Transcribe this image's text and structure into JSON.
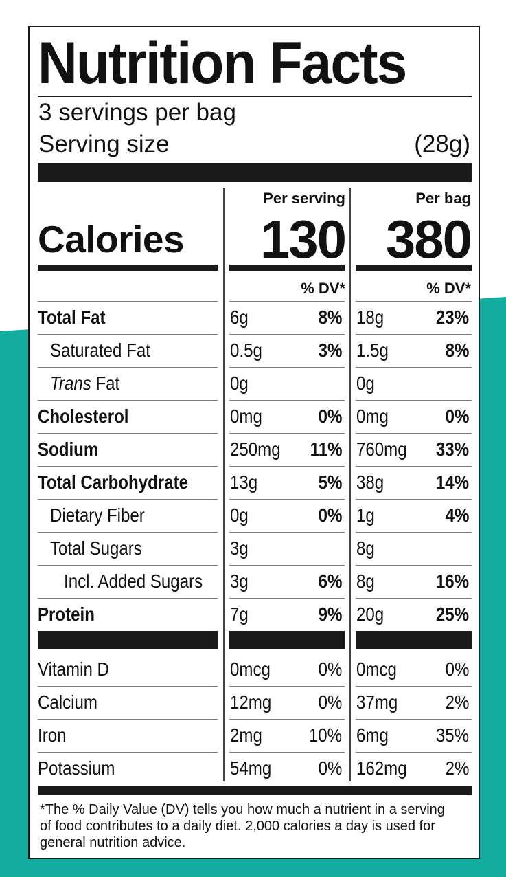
{
  "colors": {
    "teal": "#13aca0",
    "ink": "#1a1a1a"
  },
  "title": "Nutrition Facts",
  "servings_per_container": "3 servings per bag",
  "serving_size_label": "Serving size",
  "serving_size_value": "(28g)",
  "calories_label": "Calories",
  "columns": [
    {
      "header": "Per serving",
      "calories": "130",
      "dv_header": "% DV*"
    },
    {
      "header": "Per bag",
      "calories": "380",
      "dv_header": "% DV*"
    }
  ],
  "nutrients": [
    {
      "name": "Total Fat",
      "style": "bold",
      "serving_amount": "6g",
      "serving_dv": "8%",
      "bag_amount": "18g",
      "bag_dv": "23%"
    },
    {
      "name": "Saturated Fat",
      "style": "indent",
      "serving_amount": "0.5g",
      "serving_dv": "3%",
      "bag_amount": "1.5g",
      "bag_dv": "8%"
    },
    {
      "name_italic": "Trans",
      "name": " Fat",
      "style": "indent",
      "serving_amount": "0g",
      "serving_dv": "",
      "bag_amount": "0g",
      "bag_dv": ""
    },
    {
      "name": "Cholesterol",
      "style": "bold",
      "serving_amount": "0mg",
      "serving_dv": "0%",
      "bag_amount": "0mg",
      "bag_dv": "0%"
    },
    {
      "name": "Sodium",
      "style": "bold",
      "serving_amount": "250mg",
      "serving_dv": "11%",
      "bag_amount": "760mg",
      "bag_dv": "33%"
    },
    {
      "name": "Total Carbohydrate",
      "style": "bold",
      "serving_amount": "13g",
      "serving_dv": "5%",
      "bag_amount": "38g",
      "bag_dv": "14%"
    },
    {
      "name": "Dietary Fiber",
      "style": "indent",
      "serving_amount": "0g",
      "serving_dv": "0%",
      "bag_amount": "1g",
      "bag_dv": "4%"
    },
    {
      "name": "Total Sugars",
      "style": "indent",
      "serving_amount": "3g",
      "serving_dv": "",
      "bag_amount": "8g",
      "bag_dv": ""
    },
    {
      "name": "Incl. Added Sugars",
      "style": "indent2",
      "serving_amount": "3g",
      "serving_dv": "6%",
      "bag_amount": "8g",
      "bag_dv": "16%"
    },
    {
      "name": "Protein",
      "style": "bold",
      "serving_amount": "7g",
      "serving_dv": "9%",
      "bag_amount": "20g",
      "bag_dv": "25%"
    }
  ],
  "vitamins": [
    {
      "name": "Vitamin D",
      "serving_amount": "0mcg",
      "serving_dv": "0%",
      "bag_amount": "0mcg",
      "bag_dv": "0%"
    },
    {
      "name": "Calcium",
      "serving_amount": "12mg",
      "serving_dv": "0%",
      "bag_amount": "37mg",
      "bag_dv": "2%"
    },
    {
      "name": "Iron",
      "serving_amount": "2mg",
      "serving_dv": "10%",
      "bag_amount": "6mg",
      "bag_dv": "35%"
    },
    {
      "name": "Potassium",
      "serving_amount": "54mg",
      "serving_dv": "0%",
      "bag_amount": "162mg",
      "bag_dv": "2%"
    }
  ],
  "footnote": "*The % Daily Value (DV) tells you how much a nutrient in a serving of food contributes to a daily diet. 2,000 calories a day is used for general nutrition advice."
}
